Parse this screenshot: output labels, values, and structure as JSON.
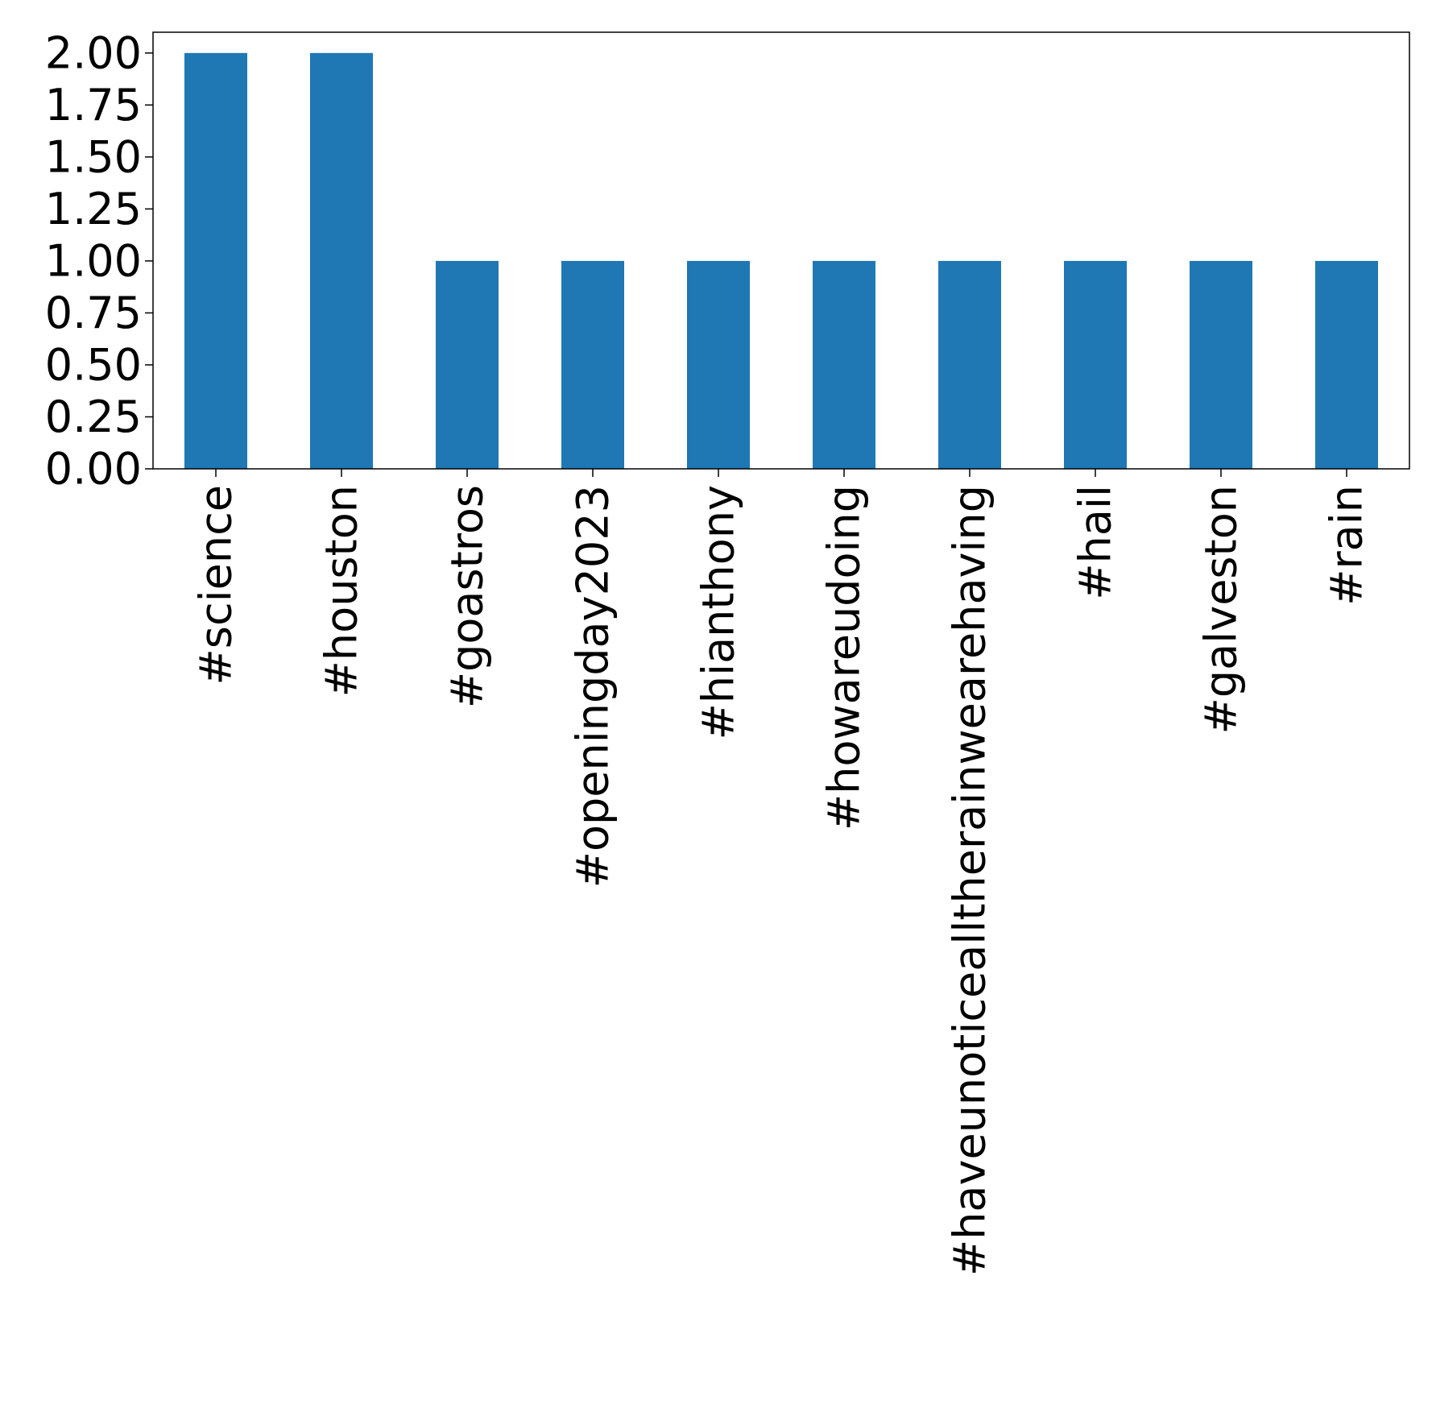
{
  "chart_data": {
    "type": "bar",
    "title": "",
    "xlabel": "",
    "ylabel": "",
    "categories": [
      "#science",
      "#houston",
      "#goastros",
      "#openingday2023",
      "#hianthony",
      "#howareudoing",
      "#haveunoticealltherainwearehaving",
      "#hail",
      "#galveston",
      "#rain"
    ],
    "values": [
      2,
      2,
      1,
      1,
      1,
      1,
      1,
      1,
      1,
      1
    ],
    "ylim": [
      0,
      2.1
    ],
    "yticks": [
      "0.00",
      "0.25",
      "0.50",
      "0.75",
      "1.00",
      "1.25",
      "1.50",
      "1.75",
      "2.00"
    ],
    "ytick_values": [
      0,
      0.25,
      0.5,
      0.75,
      1.0,
      1.25,
      1.5,
      1.75,
      2.0
    ],
    "bar_color": "#1f77b4",
    "grid": false,
    "legend": "none"
  }
}
